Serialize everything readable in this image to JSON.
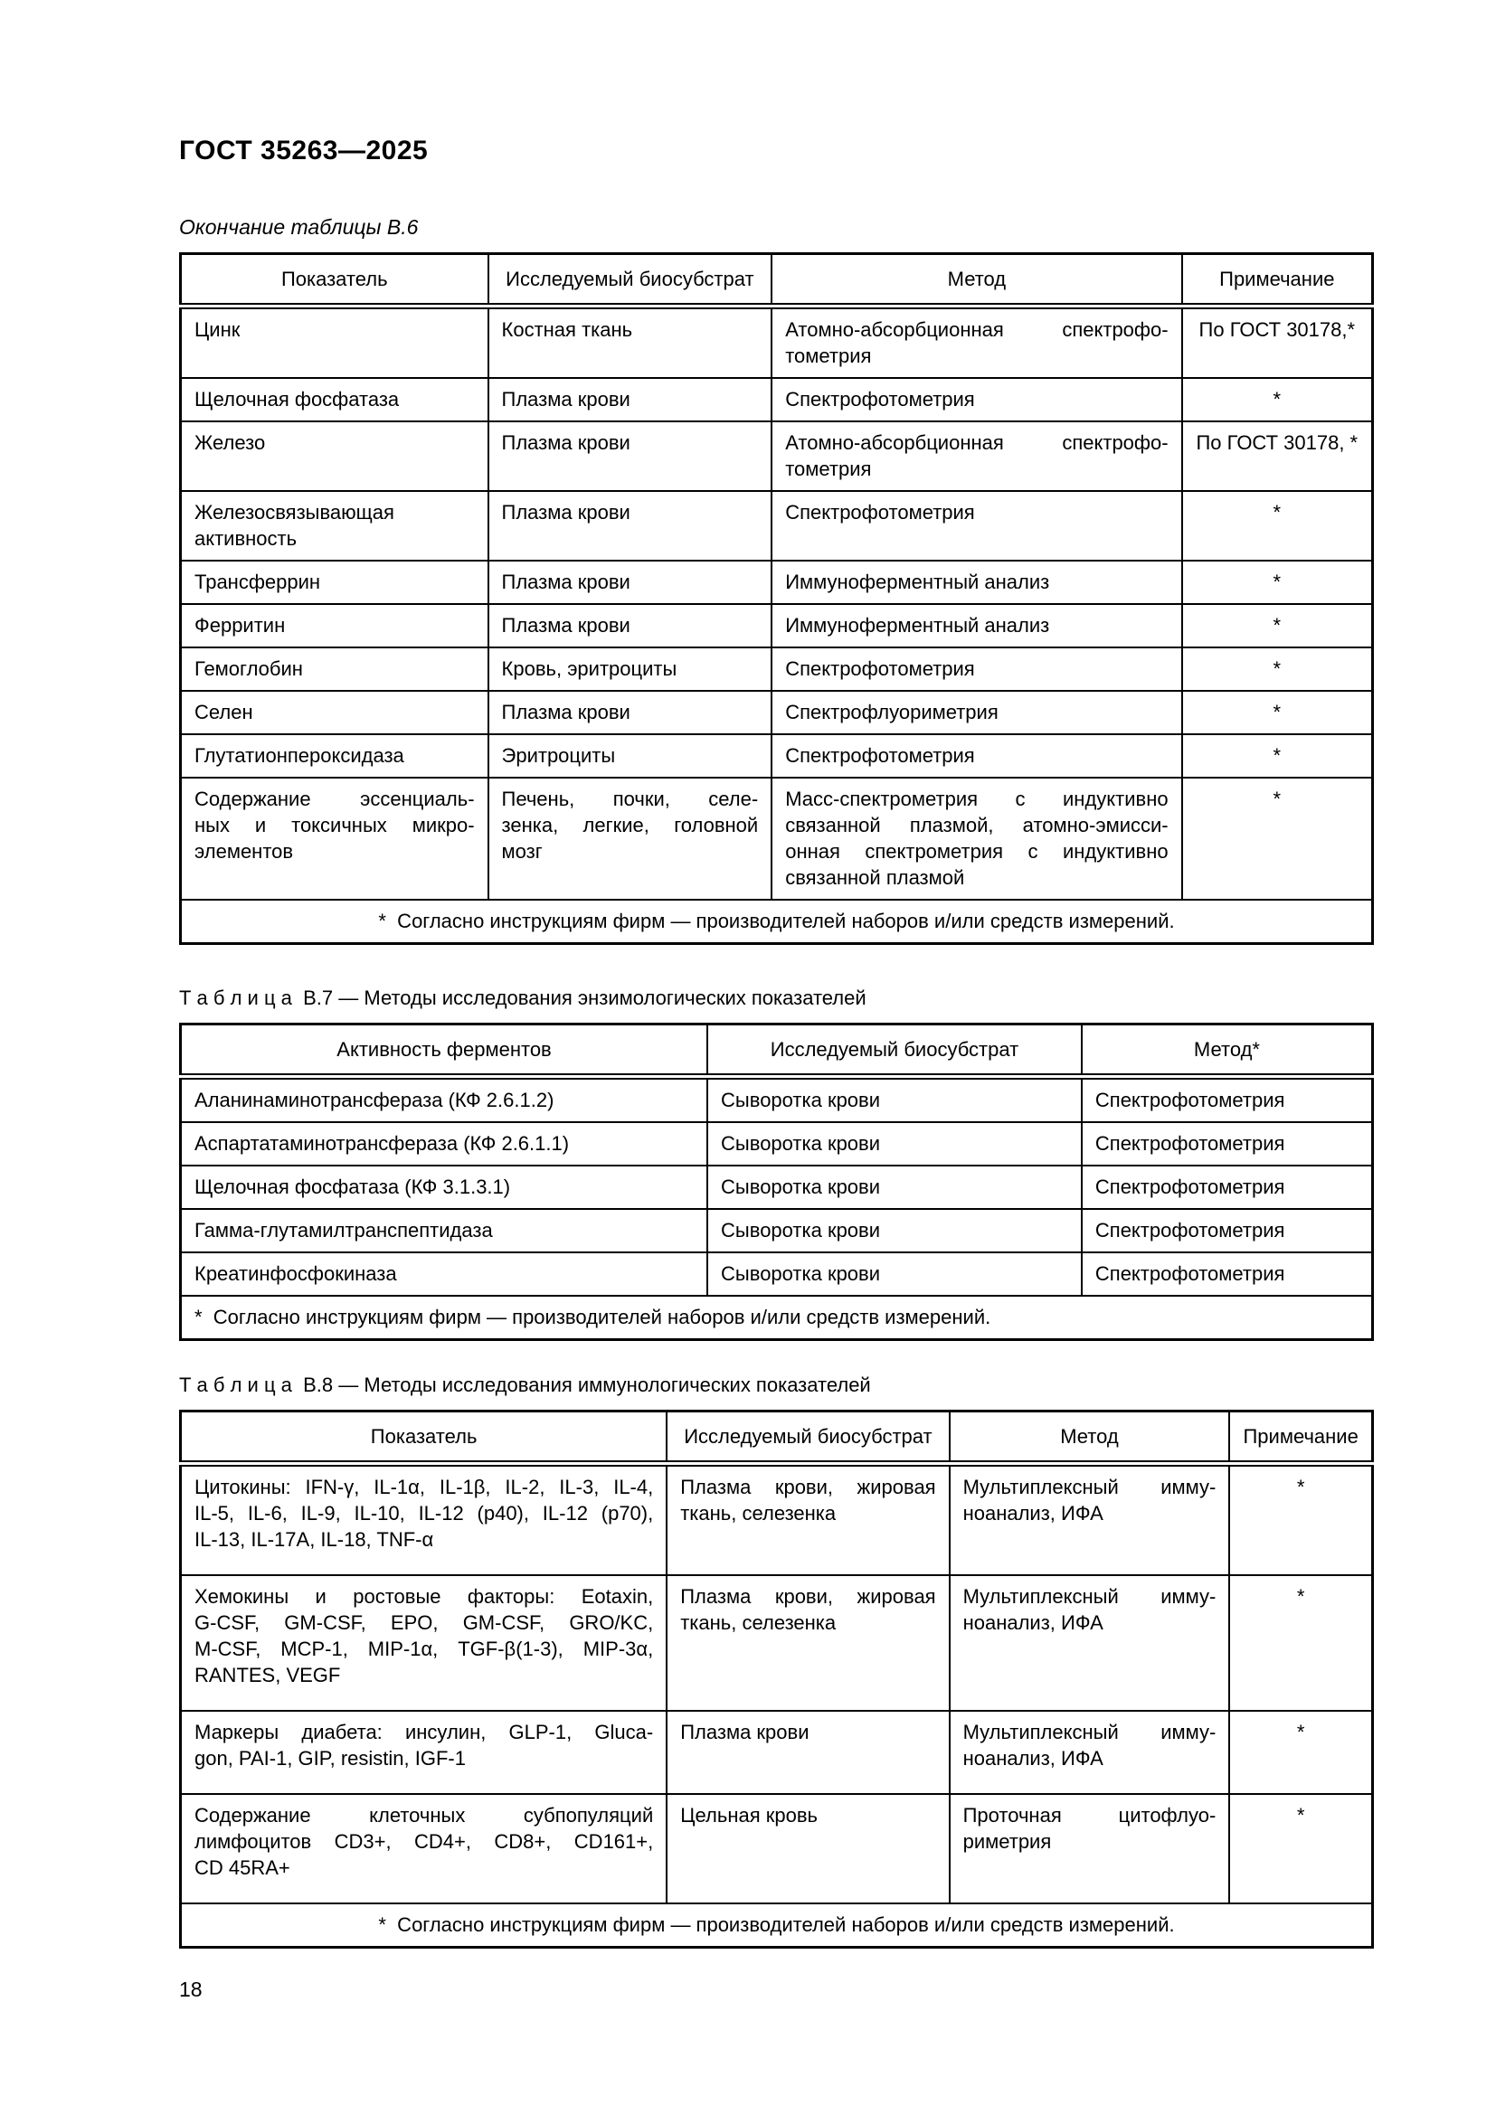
{
  "page": {
    "standard_code": "ГОСТ 35263—2025",
    "page_number": "18",
    "colors": {
      "ink": "#000000",
      "paper": "#ffffff"
    }
  },
  "table_b6": {
    "caption": "Окончание таблицы В.6",
    "columns": [
      "Показатель",
      "Исследуемый биосубстрат",
      "Метод",
      "Примечание"
    ],
    "rows": [
      [
        "Цинк",
        "Костная ткань",
        "Атомно-абсорбционная спектрофо-\nтометрия",
        "По ГОСТ 30178,*"
      ],
      [
        "Щелочная фосфатаза",
        "Плазма крови",
        "Спектрофотометрия",
        "*"
      ],
      [
        "Железо",
        "Плазма крови",
        "Атомно-абсорбционная спектрофо-\nтометрия",
        "По ГОСТ 30178, *"
      ],
      [
        "Железосвязывающая\nактивность",
        "Плазма крови",
        "Спектрофотометрия",
        "*"
      ],
      [
        "Трансферрин",
        "Плазма крови",
        "Иммуноферментный анализ",
        "*"
      ],
      [
        "Ферритин",
        "Плазма крови",
        "Иммуноферментный анализ",
        "*"
      ],
      [
        "Гемоглобин",
        "Кровь, эритроциты",
        "Спектрофотометрия",
        "*"
      ],
      [
        "Селен",
        "Плазма крови",
        "Спектрофлуориметрия",
        "*"
      ],
      [
        "Глутатионпероксидаза",
        "Эритроциты",
        "Спектрофотометрия",
        "*"
      ],
      [
        "Содержание эссенциаль-\nных и токсичных микро-\nэлементов",
        "Печень, почки, селе-\nзенка, легкие, головной\nмозг",
        "Масс-спектрометрия с индуктивно\nсвязанной плазмой, атомно-эмисси-\nонная спектрометрия с индуктивно\nсвязанной плазмой",
        "*"
      ]
    ],
    "footnote": "*  Согласно инструкциям фирм — производителей наборов и/или средств измерений."
  },
  "table_b7": {
    "caption": "Т а б л и ц а  В.7 — Методы исследования энзимологических показателей",
    "columns": [
      "Активность ферментов",
      "Исследуемый биосубстрат",
      "Метод*"
    ],
    "rows": [
      [
        "Аланинаминотрансфераза (КФ 2.6.1.2)",
        "Сыворотка крови",
        "Спектрофотометрия"
      ],
      [
        "Аспартатаминотрансфераза (КФ 2.6.1.1)",
        "Сыворотка крови",
        "Спектрофотометрия"
      ],
      [
        "Щелочная фосфатаза (КФ 3.1.3.1)",
        "Сыворотка крови",
        "Спектрофотометрия"
      ],
      [
        "Гамма-глутамилтранспептидаза",
        "Сыворотка крови",
        "Спектрофотометрия"
      ],
      [
        "Креатинфосфокиназа",
        "Сыворотка крови",
        "Спектрофотометрия"
      ]
    ],
    "footnote": "*  Согласно инструкциям фирм — производителей наборов и/или средств измерений."
  },
  "table_b8": {
    "caption": "Т а б л и ц а  В.8 — Методы исследования иммунологических показателей",
    "columns": [
      "Показатель",
      "Исследуемый биосубстрат",
      "Метод",
      "Примечание"
    ],
    "rows": [
      [
        "Цитокины: IFN-γ, IL-1α, IL-1β, IL-2, IL-3, IL-4,\nIL-5, IL-6, IL-9, IL-10, IL-12 (p40), IL-12 (p70),\nIL-13, IL-17A, IL-18, TNF-α",
        "Плазма крови, жировая\nткань, селезенка",
        "Мультиплексный имму-\nноанализ, ИФА",
        "*"
      ],
      [
        "Хемокины и ростовые факторы: Eotaxin,\nG-CSF, GM-CSF, EPO, GM-CSF, GRO/KC,\nM-CSF, MCP-1, MIP-1α, TGF-β(1-3), MIP-3α,\nRANTES, VEGF",
        "Плазма крови, жировая\nткань, селезенка",
        "Мультиплексный имму-\nноанализ, ИФА",
        "*"
      ],
      [
        "Маркеры диабета: инсулин, GLP-1, Gluca-\ngon, PAI-1, GIP, resistin, IGF-1",
        "Плазма крови",
        "Мультиплексный имму-\nноанализ, ИФА",
        "*"
      ],
      [
        "Содержание клеточных субпопуляций\nлимфоцитов CD3+, CD4+, CD8+, CD161+,\nCD 45RA+",
        "Цельная кровь",
        "Проточная цитофлуо-\nриметрия",
        "*"
      ]
    ],
    "footnote": "*  Согласно инструкциям фирм — производителей наборов и/или средств измерений."
  }
}
